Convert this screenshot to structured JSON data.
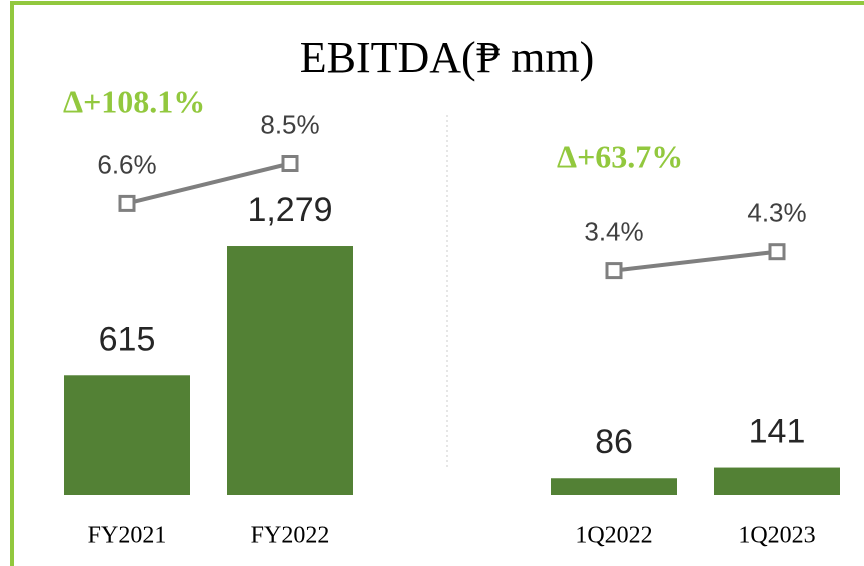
{
  "chart_data": [
    {
      "type": "bar",
      "title": "EBITDA(₱ mm)",
      "annotation": "Δ+108.1%",
      "categories": [
        "FY2021",
        "FY2022"
      ],
      "ylim": [
        0,
        1500
      ],
      "y2lim": [
        0,
        10
      ],
      "series": [
        {
          "type": "bar",
          "color": "#538135",
          "values": [
            615,
            1279
          ],
          "value_labels": [
            "615",
            "1,279"
          ]
        },
        {
          "type": "line",
          "axis": "y2",
          "color": "#7f7f7f",
          "values": [
            6.6,
            8.5
          ],
          "value_labels": [
            "6.6%",
            "8.5%"
          ]
        }
      ]
    },
    {
      "type": "bar",
      "annotation": "Δ+63.7%",
      "categories": [
        "1Q2022",
        "1Q2023"
      ],
      "ylim": [
        0,
        1500
      ],
      "y2lim": [
        0,
        10
      ],
      "series": [
        {
          "type": "bar",
          "color": "#538135",
          "values": [
            86,
            141
          ]
        },
        {
          "type": "line",
          "axis": "y2",
          "color": "#7f7f7f",
          "values": [
            3.4,
            4.3
          ],
          "value_labels": [
            "3.4%",
            "4.3%"
          ]
        }
      ]
    }
  ]
}
